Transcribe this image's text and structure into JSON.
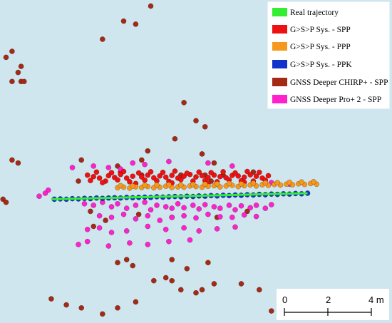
{
  "chart_data": {
    "type": "scatter",
    "title": "",
    "xlabel": "",
    "ylabel": "",
    "xlim": [
      -5.2,
      7.8
    ],
    "ylim": [
      -4.1,
      6.6
    ],
    "grid": false,
    "legend_position": "top-right",
    "series": [
      {
        "name": "Real trajectory",
        "kind": "line",
        "color": "#33ee33",
        "x": [
          -3.5,
          5.0
        ],
        "y": [
          0,
          0.2
        ]
      },
      {
        "name": "G>S>P Sys. - SPP",
        "kind": "points",
        "color": "#ee1111",
        "x": [
          -2.3,
          -2.1,
          -1.9,
          -1.6,
          -1.4,
          -1.2,
          -1.0,
          -0.8,
          -0.5,
          -0.3,
          -0.1,
          0.1,
          0.3,
          0.5,
          0.7,
          0.9,
          1.1,
          1.3,
          1.5,
          1.7,
          1.9,
          2.1,
          2.3,
          2.5,
          2.7,
          2.9,
          3.1,
          3.3,
          3.5,
          3.7,
          -2.2,
          -1.7,
          -1.3,
          -0.9,
          -0.4,
          0.0,
          0.4,
          0.8,
          1.2,
          1.6,
          2.0,
          2.4,
          2.8,
          3.2,
          3.6,
          -2.0,
          -1.5,
          -1.1,
          -0.6,
          -0.2,
          0.2,
          0.6,
          1.0,
          1.4,
          1.8,
          2.2,
          2.6,
          3.0,
          3.4,
          -1.8,
          -0.7,
          0.5,
          1.7,
          2.9
        ],
        "y": [
          0.8,
          0.75,
          0.7,
          0.78,
          0.72,
          0.82,
          0.7,
          0.76,
          0.74,
          0.8,
          0.71,
          0.77,
          0.73,
          0.79,
          0.7,
          0.76,
          0.82,
          0.74,
          0.78,
          0.72,
          0.8,
          0.75,
          0.71,
          0.79,
          0.77,
          0.73,
          0.81,
          0.76,
          0.7,
          0.78,
          0.62,
          0.6,
          0.64,
          0.58,
          0.63,
          0.61,
          0.59,
          0.65,
          0.6,
          0.62,
          0.58,
          0.64,
          0.61,
          0.6,
          0.63,
          0.9,
          0.88,
          0.92,
          0.87,
          0.91,
          0.89,
          0.93,
          0.86,
          0.9,
          0.88,
          0.91,
          0.87,
          0.92,
          0.89,
          0.55,
          0.52,
          0.54,
          0.53,
          0.56
        ]
      },
      {
        "name": "G>S>P Sys. - PPP",
        "kind": "points",
        "color": "#f5981d",
        "x": [
          -1.3,
          -1.1,
          -0.9,
          -0.7,
          -0.5,
          -0.3,
          -0.1,
          0.1,
          0.3,
          0.5,
          0.7,
          0.9,
          1.1,
          1.3,
          1.5,
          1.7,
          1.9,
          2.1,
          2.3,
          2.5,
          2.7,
          2.9,
          3.1,
          3.3,
          3.5,
          3.7,
          3.9,
          4.1,
          4.3,
          4.5,
          4.7,
          4.9,
          5.1,
          5.3,
          -1.2,
          -0.8,
          -0.4,
          0.0,
          0.4,
          0.8,
          1.2,
          1.6,
          2.0,
          2.4,
          2.8,
          3.2,
          3.6,
          4.0,
          4.4,
          4.8,
          5.2
        ],
        "y": [
          0.38,
          0.4,
          0.37,
          0.41,
          0.39,
          0.42,
          0.38,
          0.4,
          0.43,
          0.39,
          0.41,
          0.4,
          0.44,
          0.42,
          0.4,
          0.43,
          0.45,
          0.41,
          0.44,
          0.46,
          0.42,
          0.45,
          0.47,
          0.44,
          0.48,
          0.46,
          0.49,
          0.47,
          0.5,
          0.48,
          0.51,
          0.49,
          0.52,
          0.5,
          0.45,
          0.44,
          0.46,
          0.47,
          0.48,
          0.47,
          0.49,
          0.5,
          0.51,
          0.52,
          0.51,
          0.53,
          0.54,
          0.55,
          0.56,
          0.57,
          0.58
        ]
      },
      {
        "name": "G>S>P Sys. - PPK",
        "kind": "points",
        "color": "#1133cc",
        "x": [
          -3.4,
          -3.2,
          -3.0,
          -2.8,
          -2.6,
          -2.4,
          -2.2,
          -2.0,
          -1.8,
          -1.6,
          -1.4,
          -1.2,
          -1.0,
          -0.8,
          -0.6,
          -0.4,
          -0.2,
          0.0,
          0.2,
          0.4,
          0.6,
          0.8,
          1.0,
          1.2,
          1.4,
          1.6,
          1.8,
          2.0,
          2.2,
          2.4,
          2.6,
          2.8,
          3.0,
          3.2,
          3.4,
          3.6,
          3.8,
          4.0,
          4.2,
          4.4,
          4.6,
          4.8,
          5.0
        ],
        "y": [
          0.0,
          0.01,
          0.0,
          0.02,
          0.01,
          0.03,
          0.02,
          0.04,
          0.03,
          0.04,
          0.05,
          0.04,
          0.06,
          0.05,
          0.06,
          0.07,
          0.06,
          0.08,
          0.07,
          0.08,
          0.09,
          0.08,
          0.1,
          0.09,
          0.11,
          0.1,
          0.12,
          0.11,
          0.13,
          0.12,
          0.14,
          0.13,
          0.15,
          0.14,
          0.16,
          0.15,
          0.17,
          0.16,
          0.18,
          0.17,
          0.19,
          0.18,
          0.2
        ]
      },
      {
        "name": "GNSS Deeper CHIRP+ - SPP",
        "kind": "points",
        "color": "#a52a16",
        "x": [
          -0.2,
          -1.1,
          -0.7,
          -1.8,
          -5.0,
          -4.8,
          -4.5,
          -4.6,
          -4.8,
          -4.5,
          -4.4,
          -4.8,
          -4.6,
          -5.1,
          -5.0,
          0.9,
          1.3,
          1.6,
          0.6,
          -0.3,
          -0.5,
          -2.5,
          1.5,
          1.9,
          -1.3,
          1.6,
          2.2,
          3.2,
          1.8,
          0.8,
          -0.5,
          -1.2,
          -2.6,
          -2.2,
          -2.1,
          -1.7,
          -0.6,
          0.5,
          2.0,
          3.0,
          -0.1,
          0.3,
          0.5,
          0.8,
          1.5,
          1.9,
          2.8,
          3.4,
          -1.3,
          -1.0,
          -0.8,
          0.5,
          1.0,
          1.7,
          -3.5,
          -3.0,
          -2.5,
          -1.8,
          -1.3,
          -0.7,
          1.3,
          3.8,
          5.0
        ],
        "y": [
          6.4,
          5.9,
          5.8,
          5.3,
          4.7,
          4.9,
          4.4,
          4.2,
          3.9,
          3.9,
          3.9,
          1.3,
          1.2,
          0.0,
          -0.1,
          3.2,
          2.6,
          2.4,
          2.0,
          1.6,
          1.3,
          1.3,
          1.5,
          1.2,
          1.1,
          0.8,
          0.8,
          0.9,
          0.6,
          0.8,
          0.8,
          0.9,
          0.6,
          -0.4,
          -0.9,
          -0.7,
          -0.5,
          -0.6,
          -0.6,
          -0.4,
          -2.7,
          -2.6,
          -2.7,
          -3.0,
          -3.0,
          -2.8,
          -2.8,
          -3.0,
          -2.1,
          -2.0,
          -2.2,
          -2.0,
          -2.3,
          -2.1,
          -3.3,
          -3.5,
          -3.6,
          -3.8,
          -3.6,
          -3.4,
          -3.1,
          -3.7,
          -3.5
        ]
      },
      {
        "name": "GNSS Deeper Pro+ 2 - SPP",
        "kind": "points",
        "color": "#ff22cc",
        "x": [
          -2.4,
          -2.1,
          -1.8,
          -1.5,
          -1.3,
          -1.0,
          -0.7,
          -0.4,
          -0.2,
          0.0,
          0.3,
          0.5,
          0.7,
          0.9,
          1.2,
          1.4,
          1.6,
          1.9,
          2.1,
          2.4,
          2.6,
          2.8,
          3.1,
          3.3,
          3.6,
          3.8,
          -1.9,
          -1.5,
          -1.1,
          -0.7,
          -0.3,
          0.1,
          0.5,
          0.9,
          1.3,
          1.7,
          2.1,
          2.5,
          2.9,
          3.3,
          -2.3,
          -1.9,
          -1.5,
          -1.0,
          -0.3,
          0.3,
          0.9,
          1.4,
          2.0,
          2.6,
          -2.6,
          -2.3,
          -1.6,
          -0.9,
          -0.3,
          0.4,
          1.1,
          -3.6,
          -3.9,
          -3.7,
          -2.1,
          -1.6,
          -1.2,
          -0.8,
          -2.8,
          -0.4,
          0.4,
          1.7,
          2.5,
          3.8,
          4.4
        ],
        "y": [
          -0.15,
          -0.2,
          -0.1,
          -0.25,
          -0.15,
          -0.3,
          -0.2,
          -0.1,
          -0.35,
          -0.2,
          -0.25,
          -0.3,
          -0.15,
          -0.28,
          -0.2,
          -0.32,
          -0.18,
          -0.25,
          -0.3,
          -0.2,
          -0.35,
          -0.22,
          -0.28,
          -0.2,
          -0.3,
          -0.18,
          -0.55,
          -0.6,
          -0.5,
          -0.65,
          -0.55,
          -0.7,
          -0.6,
          -0.55,
          -0.62,
          -0.5,
          -0.58,
          -0.6,
          -0.52,
          -0.57,
          -1.0,
          -0.95,
          -1.1,
          -1.05,
          -0.9,
          -1.0,
          -0.95,
          -1.05,
          -0.98,
          -0.92,
          -1.5,
          -1.4,
          -1.55,
          -1.45,
          -1.5,
          -1.4,
          -1.35,
          0.3,
          0.1,
          0.2,
          1.1,
          1.05,
          1.0,
          1.2,
          1.05,
          1.15,
          1.25,
          1.2,
          1.1,
          0.55,
          0.5
        ]
      }
    ]
  },
  "legend": {
    "items": [
      {
        "label": "Real trajectory",
        "color": "#33ee33"
      },
      {
        "label": "G>S>P Sys. - SPP",
        "color": "#ee1111"
      },
      {
        "label": "G>S>P Sys. - PPP",
        "color": "#f5981d"
      },
      {
        "label": "G>S>P Sys. - PPK",
        "color": "#1133cc"
      },
      {
        "label": "GNSS Deeper CHIRP+ - SPP",
        "color": "#a52a16"
      },
      {
        "label": "GNSS Deeper Pro+ 2 - SPP",
        "color": "#ff22cc"
      }
    ]
  },
  "scale_bar": {
    "labels": [
      "0",
      "2",
      "4 m"
    ]
  }
}
